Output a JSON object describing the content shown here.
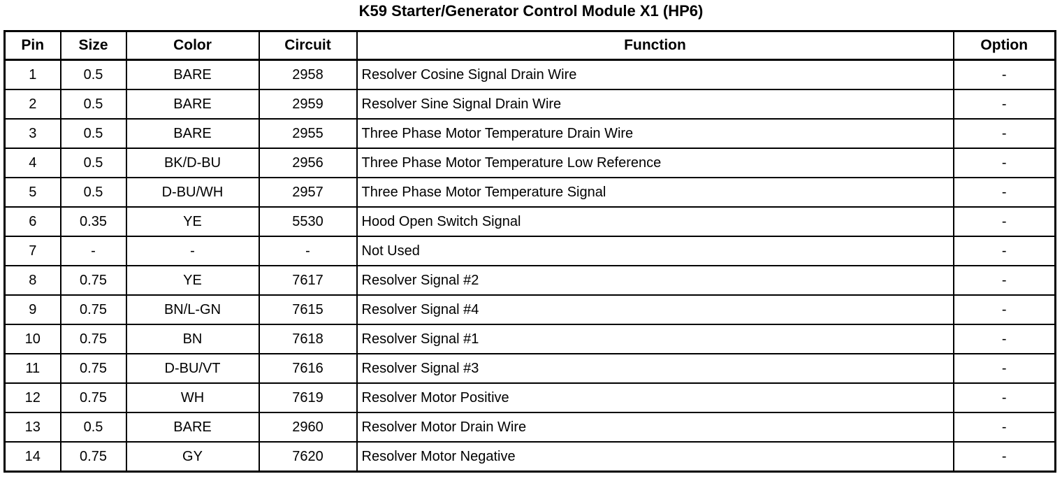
{
  "title": "K59 Starter/Generator Control Module X1 (HP6)",
  "table": {
    "columns": [
      {
        "key": "pin",
        "label": "Pin"
      },
      {
        "key": "size",
        "label": "Size"
      },
      {
        "key": "color",
        "label": "Color"
      },
      {
        "key": "circuit",
        "label": "Circuit"
      },
      {
        "key": "function",
        "label": "Function"
      },
      {
        "key": "option",
        "label": "Option"
      }
    ],
    "rows": [
      {
        "pin": "1",
        "size": "0.5",
        "color": "BARE",
        "circuit": "2958",
        "function": "Resolver Cosine Signal Drain Wire",
        "option": "-"
      },
      {
        "pin": "2",
        "size": "0.5",
        "color": "BARE",
        "circuit": "2959",
        "function": "Resolver Sine Signal Drain Wire",
        "option": "-"
      },
      {
        "pin": "3",
        "size": "0.5",
        "color": "BARE",
        "circuit": "2955",
        "function": "Three Phase Motor Temperature Drain Wire",
        "option": "-"
      },
      {
        "pin": "4",
        "size": "0.5",
        "color": "BK/D-BU",
        "circuit": "2956",
        "function": "Three Phase Motor Temperature Low Reference",
        "option": "-"
      },
      {
        "pin": "5",
        "size": "0.5",
        "color": "D-BU/WH",
        "circuit": "2957",
        "function": "Three Phase Motor Temperature Signal",
        "option": "-"
      },
      {
        "pin": "6",
        "size": "0.35",
        "color": "YE",
        "circuit": "5530",
        "function": "Hood Open Switch Signal",
        "option": "-"
      },
      {
        "pin": "7",
        "size": "-",
        "color": "-",
        "circuit": "-",
        "function": "Not Used",
        "option": "-"
      },
      {
        "pin": "8",
        "size": "0.75",
        "color": "YE",
        "circuit": "7617",
        "function": "Resolver Signal #2",
        "option": "-"
      },
      {
        "pin": "9",
        "size": "0.75",
        "color": "BN/L-GN",
        "circuit": "7615",
        "function": "Resolver Signal #4",
        "option": "-"
      },
      {
        "pin": "10",
        "size": "0.75",
        "color": "BN",
        "circuit": "7618",
        "function": "Resolver Signal #1",
        "option": "-"
      },
      {
        "pin": "11",
        "size": "0.75",
        "color": "D-BU/VT",
        "circuit": "7616",
        "function": "Resolver Signal #3",
        "option": "-"
      },
      {
        "pin": "12",
        "size": "0.75",
        "color": "WH",
        "circuit": "7619",
        "function": "Resolver Motor Positive",
        "option": "-"
      },
      {
        "pin": "13",
        "size": "0.5",
        "color": "BARE",
        "circuit": "2960",
        "function": "Resolver Motor Drain Wire",
        "option": "-"
      },
      {
        "pin": "14",
        "size": "0.75",
        "color": "GY",
        "circuit": "7620",
        "function": "Resolver Motor Negative",
        "option": "-"
      }
    ]
  }
}
